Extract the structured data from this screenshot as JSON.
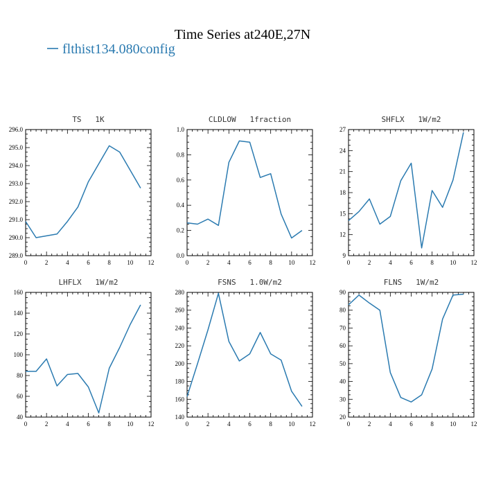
{
  "figure": {
    "title": "Time Series at240E,27N",
    "legend_label": "flthist134.080config",
    "series_color": "#2a7ab0"
  },
  "chart_data": [
    {
      "type": "line",
      "title": "TS   1K",
      "x": [
        0,
        1,
        2,
        3,
        4,
        5,
        6,
        7,
        8,
        9,
        10,
        11
      ],
      "series": [
        {
          "values": [
            290.9,
            290.0,
            290.1,
            290.2,
            290.9,
            291.7,
            293.1,
            294.1,
            295.1,
            294.75,
            293.75,
            292.75
          ]
        }
      ],
      "xlim": [
        0,
        12
      ],
      "ylim": [
        289.0,
        296.0
      ],
      "xticks": [
        0,
        2,
        4,
        6,
        8,
        10,
        12
      ],
      "yticks": [
        289.0,
        290.0,
        291.0,
        292.0,
        293.0,
        294.0,
        295.0,
        296.0
      ],
      "yticklabels": [
        "289.0",
        "290.0",
        "291.0",
        "292.0",
        "293.0",
        "294.0",
        "295.0",
        "296.0"
      ]
    },
    {
      "type": "line",
      "title": "CLDLOW   1fraction",
      "x": [
        0,
        1,
        2,
        3,
        4,
        5,
        6,
        7,
        8,
        9,
        10,
        11
      ],
      "series": [
        {
          "values": [
            0.26,
            0.25,
            0.29,
            0.24,
            0.74,
            0.91,
            0.9,
            0.62,
            0.65,
            0.33,
            0.14,
            0.2
          ]
        }
      ],
      "xlim": [
        0,
        12
      ],
      "ylim": [
        0.0,
        1.0
      ],
      "xticks": [
        0,
        2,
        4,
        6,
        8,
        10,
        12
      ],
      "yticks": [
        0.0,
        0.2,
        0.4,
        0.6,
        0.8,
        1.0
      ],
      "yticklabels": [
        "0.0",
        "0.2",
        "0.4",
        "0.6",
        "0.8",
        "1.0"
      ]
    },
    {
      "type": "line",
      "title": "SHFLX   1W/m2",
      "x": [
        0,
        1,
        2,
        3,
        4,
        5,
        6,
        7,
        8,
        9,
        10,
        11
      ],
      "series": [
        {
          "values": [
            14.0,
            15.3,
            17.1,
            13.5,
            14.6,
            19.7,
            22.2,
            10.1,
            18.3,
            15.9,
            19.8,
            26.6
          ]
        }
      ],
      "xlim": [
        0,
        12
      ],
      "ylim": [
        9,
        27
      ],
      "xticks": [
        0,
        2,
        4,
        6,
        8,
        10,
        12
      ],
      "yticks": [
        9,
        12,
        15,
        18,
        21,
        24,
        27
      ],
      "yticklabels": [
        "9",
        "12",
        "15",
        "18",
        "21",
        "24",
        "27"
      ]
    },
    {
      "type": "line",
      "title": "LHFLX   1W/m2",
      "x": [
        0,
        1,
        2,
        3,
        4,
        5,
        6,
        7,
        8,
        9,
        10,
        11
      ],
      "series": [
        {
          "values": [
            84,
            84,
            96,
            70,
            81,
            82,
            69,
            44,
            87,
            107,
            129,
            148
          ]
        }
      ],
      "xlim": [
        0,
        12
      ],
      "ylim": [
        40,
        160
      ],
      "xticks": [
        0,
        2,
        4,
        6,
        8,
        10,
        12
      ],
      "yticks": [
        40,
        60,
        80,
        100,
        120,
        140,
        160
      ],
      "yticklabels": [
        "40",
        "60",
        "80",
        "100",
        "120",
        "140",
        "160"
      ]
    },
    {
      "type": "line",
      "title": "FSNS   1.0W/m2",
      "x": [
        0,
        1,
        2,
        3,
        4,
        5,
        6,
        7,
        8,
        9,
        10,
        11
      ],
      "series": [
        {
          "values": [
            163,
            200,
            238,
            279,
            225,
            203,
            211,
            235,
            211,
            204,
            169,
            152
          ]
        }
      ],
      "xlim": [
        0,
        12
      ],
      "ylim": [
        140,
        280
      ],
      "xticks": [
        0,
        2,
        4,
        6,
        8,
        10,
        12
      ],
      "yticks": [
        140,
        160,
        180,
        200,
        220,
        240,
        260,
        280
      ],
      "yticklabels": [
        "140",
        "160",
        "180",
        "200",
        "220",
        "240",
        "260",
        "280"
      ]
    },
    {
      "type": "line",
      "title": "FLNS   1W/m2",
      "x": [
        0,
        1,
        2,
        3,
        4,
        5,
        6,
        7,
        8,
        9,
        10,
        11
      ],
      "series": [
        {
          "values": [
            83,
            88.5,
            84,
            80,
            45,
            31,
            28.5,
            32.5,
            47,
            75,
            88.5,
            89
          ]
        }
      ],
      "xlim": [
        0,
        12
      ],
      "ylim": [
        20,
        90
      ],
      "xticks": [
        0,
        2,
        4,
        6,
        8,
        10,
        12
      ],
      "yticks": [
        20,
        30,
        40,
        50,
        60,
        70,
        80,
        90
      ],
      "yticklabels": [
        "20",
        "30",
        "40",
        "50",
        "60",
        "70",
        "80",
        "90"
      ]
    }
  ]
}
